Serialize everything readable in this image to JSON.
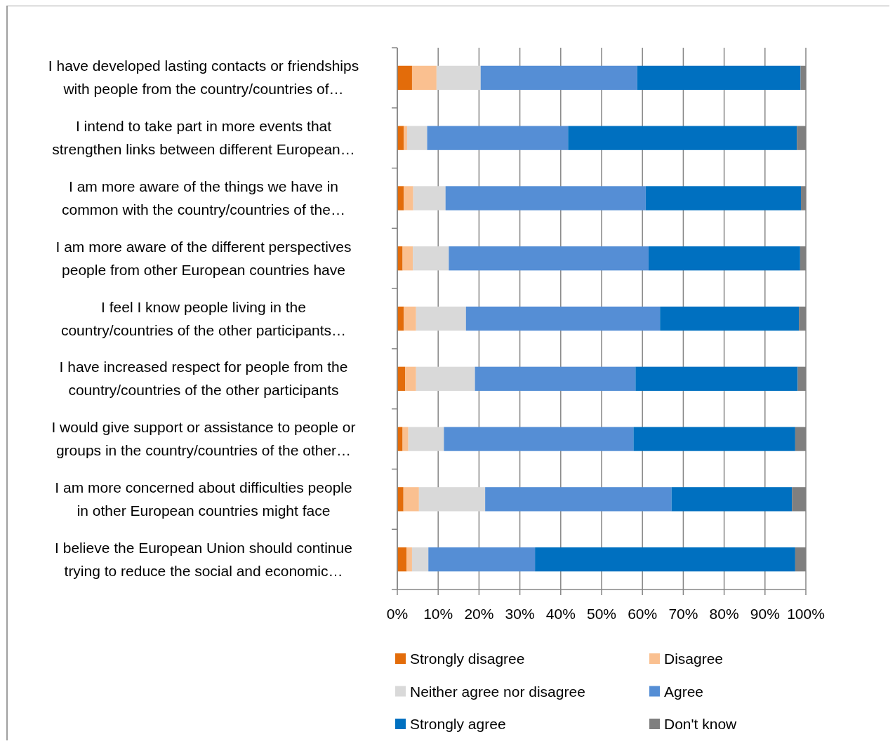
{
  "chart_data": {
    "type": "bar",
    "orientation": "horizontal",
    "stacked": true,
    "categories": [
      "I have developed lasting contacts or friendships\nwith people from the country/countries of…",
      "I intend to take part in more events that\nstrengthen links between different European…",
      "I am more aware of the things we have in\ncommon with the country/countries of the…",
      "I am more aware of the different perspectives\npeople from other European countries have",
      "I feel I know people living in the\ncountry/countries of the other participants…",
      "I have increased respect for people from the\ncountry/countries of the other participants",
      "I would give support or assistance to people or\ngroups in the country/countries of the other…",
      "I am more concerned about difficulties people\nin other European countries might face",
      "I believe the European Union should continue\ntrying to reduce the social and economic…"
    ],
    "series": [
      {
        "name": "Strongly disagree",
        "color": "#e36c0a",
        "values": [
          3.6,
          1.6,
          1.6,
          1.3,
          1.6,
          1.9,
          1.3,
          1.5,
          2.3
        ]
      },
      {
        "name": "Disagree",
        "color": "#fac090",
        "values": [
          6.0,
          0.8,
          2.3,
          2.5,
          3.0,
          2.7,
          1.4,
          3.8,
          1.3
        ]
      },
      {
        "name": "Neither agree nor disagree",
        "color": "#d9d9d9",
        "values": [
          10.8,
          4.9,
          7.9,
          8.8,
          12.2,
          14.4,
          8.7,
          16.2,
          4.0
        ]
      },
      {
        "name": "Agree",
        "color": "#558ed5",
        "values": [
          38.3,
          34.5,
          49.0,
          48.9,
          47.5,
          39.3,
          46.4,
          45.6,
          26.1
        ]
      },
      {
        "name": "Strongly agree",
        "color": "#0070c0",
        "values": [
          40.0,
          56.0,
          38.0,
          37.1,
          34.0,
          39.7,
          39.6,
          29.5,
          63.7
        ]
      },
      {
        "name": "Don't know",
        "color": "#7f7f7f",
        "values": [
          1.3,
          2.2,
          1.2,
          1.4,
          1.7,
          2.0,
          2.6,
          3.4,
          2.6
        ]
      }
    ],
    "xlim": [
      0,
      100
    ],
    "xticks": [
      {
        "value": 0,
        "label": "0%"
      },
      {
        "value": 10,
        "label": "10%"
      },
      {
        "value": 20,
        "label": "20%"
      },
      {
        "value": 30,
        "label": "30%"
      },
      {
        "value": 40,
        "label": "40%"
      },
      {
        "value": 50,
        "label": "50%"
      },
      {
        "value": 60,
        "label": "60%"
      },
      {
        "value": 70,
        "label": "70%"
      },
      {
        "value": 80,
        "label": "80%"
      },
      {
        "value": 90,
        "label": "90%"
      },
      {
        "value": 100,
        "label": "100%"
      }
    ],
    "grid": "x",
    "legend": "bottom"
  }
}
